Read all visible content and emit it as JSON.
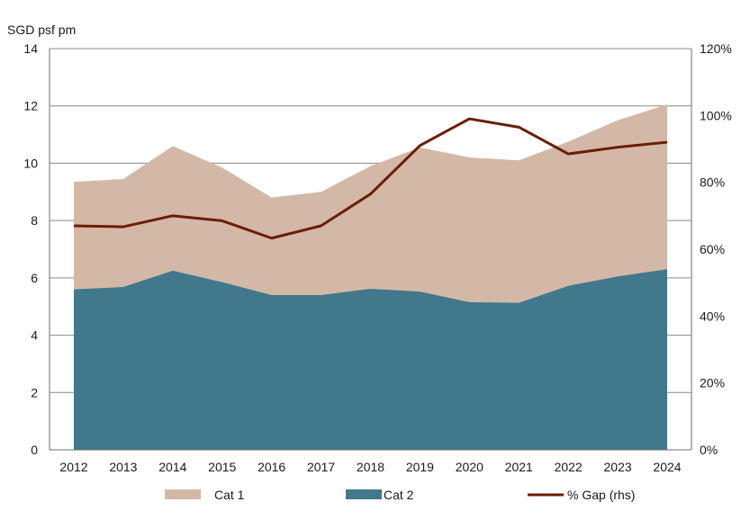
{
  "chart_data": {
    "type": "area",
    "ylabel": "SGD psf pm",
    "ylim": [
      0,
      14
    ],
    "yticks": [
      0,
      2,
      4,
      6,
      8,
      10,
      12,
      14
    ],
    "y2lim": [
      0,
      120
    ],
    "y2ticks": [
      0,
      20,
      40,
      60,
      80,
      100,
      120
    ],
    "y2tick_labels": [
      "0%",
      "20%",
      "40%",
      "60%",
      "80%",
      "100%",
      "120%"
    ],
    "grid": true,
    "legend_position": "bottom",
    "categories": [
      "2012",
      "2013",
      "2014",
      "2015",
      "2016",
      "2017",
      "2018",
      "2019",
      "2020",
      "2021",
      "2022",
      "2023",
      "2024"
    ],
    "series": [
      {
        "name": "Cat 1",
        "type": "area",
        "axis": "left",
        "color": "#d3b8a7",
        "values": [
          9.35,
          9.45,
          10.6,
          9.85,
          8.8,
          9.0,
          9.9,
          10.55,
          10.2,
          10.1,
          10.75,
          11.5,
          12.05
        ]
      },
      {
        "name": "Cat 2",
        "type": "area",
        "axis": "left",
        "color": "#41788b",
        "values": [
          5.6,
          5.68,
          6.25,
          5.85,
          5.4,
          5.4,
          5.62,
          5.52,
          5.15,
          5.13,
          5.72,
          6.05,
          6.3
        ]
      },
      {
        "name": "% Gap (rhs)",
        "type": "line",
        "axis": "right",
        "color": "#6b1d06",
        "values": [
          67,
          66.7,
          70,
          68.5,
          63.3,
          67,
          76.5,
          91,
          99,
          96.5,
          88.5,
          90.5,
          92
        ]
      }
    ]
  }
}
